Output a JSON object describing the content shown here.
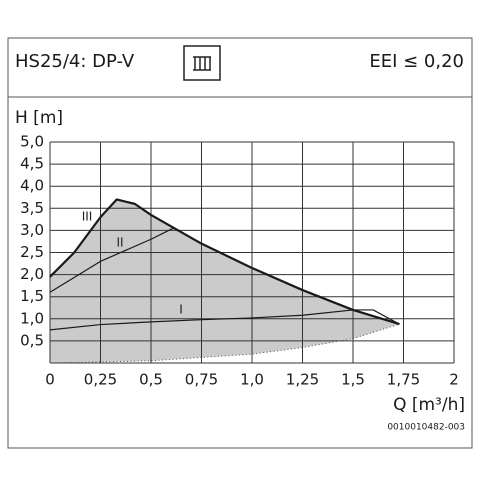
{
  "header": {
    "title": "HS25/4: DP-V",
    "efficiency": "EEI ≤ 0,20"
  },
  "chart_data": {
    "type": "line",
    "ylabel": "H [m]",
    "xlabel": "Q [m³/h]",
    "xlim": [
      0,
      2
    ],
    "ylim": [
      0,
      5
    ],
    "xticks": [
      0,
      {
        "value": 0.25,
        "label": "0,25"
      },
      {
        "value": 0.5,
        "label": "0,5"
      },
      {
        "value": 0.75,
        "label": "0,75"
      },
      {
        "value": 1,
        "label": "1,0"
      },
      {
        "value": 1.25,
        "label": "1,25"
      },
      {
        "value": 1.5,
        "label": "1,5"
      },
      {
        "value": 1.75,
        "label": "1,75"
      },
      2
    ],
    "yticks": [
      {
        "value": 0.5,
        "label": "0,5"
      },
      {
        "value": 1,
        "label": "1,0"
      },
      {
        "value": 1.5,
        "label": "1,5"
      },
      {
        "value": 2,
        "label": "2,0"
      },
      {
        "value": 2.5,
        "label": "2,5"
      },
      {
        "value": 3,
        "label": "3,0"
      },
      {
        "value": 3.5,
        "label": "3,5"
      },
      {
        "value": 4,
        "label": "4,0"
      },
      {
        "value": 4.5,
        "label": "4,5"
      },
      {
        "value": 5,
        "label": "5,0"
      }
    ],
    "grid": true,
    "fill_color": "#cbcbcb",
    "series": [
      {
        "name": "III",
        "color": "#1a1a1a",
        "x": [
          0,
          0.12,
          0.25,
          0.33,
          0.42,
          0.5,
          0.75,
          1.0,
          1.25,
          1.5,
          1.73
        ],
        "values": [
          1.95,
          2.5,
          3.3,
          3.7,
          3.6,
          3.35,
          2.7,
          2.15,
          1.65,
          1.2,
          0.88
        ]
      },
      {
        "name": "II",
        "color": "#1a1a1a",
        "x": [
          0,
          0.25,
          0.5,
          0.61
        ],
        "values": [
          1.6,
          2.3,
          2.8,
          3.05
        ]
      },
      {
        "name": "I",
        "color": "#1a1a1a",
        "x": [
          0,
          0.25,
          0.5,
          0.75,
          1.0,
          1.25,
          1.5,
          1.6,
          1.73
        ],
        "values": [
          0.75,
          0.87,
          0.93,
          0.98,
          1.02,
          1.08,
          1.2,
          1.2,
          0.88
        ]
      }
    ],
    "area_bottom": {
      "x": [
        0,
        0.5,
        1.0,
        1.25,
        1.5,
        1.73
      ],
      "values": [
        0,
        0.05,
        0.2,
        0.35,
        0.55,
        0.88
      ]
    }
  },
  "footer": {
    "code": "0010010482-003"
  }
}
